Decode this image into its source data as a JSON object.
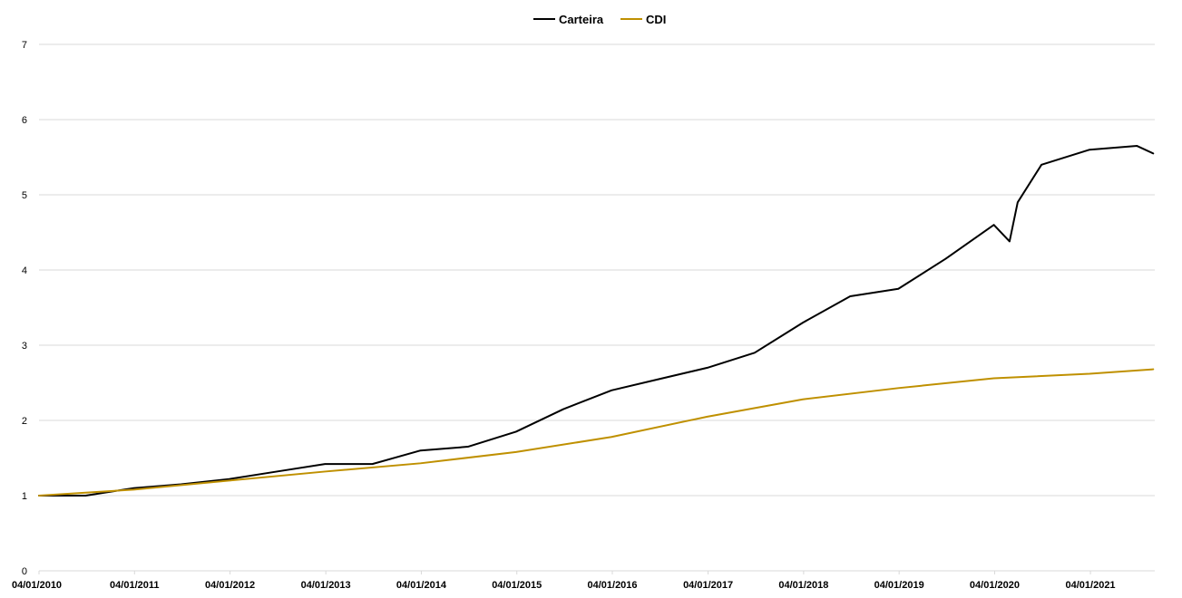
{
  "chart_data": {
    "type": "line",
    "title": "",
    "xlabel": "",
    "ylabel": "",
    "ylim": [
      0,
      7
    ],
    "y_ticks": [
      "0",
      "1",
      "2",
      "3",
      "4",
      "5",
      "6",
      "7"
    ],
    "x_ticks": [
      "04/01/2010",
      "04/01/2011",
      "04/01/2012",
      "04/01/2013",
      "04/01/2014",
      "04/01/2015",
      "04/01/2016",
      "04/01/2017",
      "04/01/2018",
      "04/01/2019",
      "04/01/2020",
      "04/01/2021"
    ],
    "x_range": [
      "04/01/2010",
      "07/09/2021"
    ],
    "grid": "horizontal",
    "legend_position": "top-center",
    "series": [
      {
        "name": "Carteira",
        "color": "#000000",
        "x": [
          "04/01/2010",
          "07/2010",
          "01/2011",
          "07/2011",
          "01/2012",
          "07/2012",
          "01/2013",
          "07/2013",
          "01/2014",
          "07/2014",
          "01/2015",
          "07/2015",
          "01/2016",
          "07/2016",
          "01/2017",
          "07/2017",
          "01/2018",
          "07/2018",
          "01/2019",
          "07/2019",
          "01/2020",
          "03/2020",
          "04/2020",
          "07/2020",
          "01/2021",
          "07/2021",
          "09/2021"
        ],
        "values": [
          1.0,
          1.0,
          1.1,
          1.15,
          1.22,
          1.32,
          1.42,
          1.42,
          1.6,
          1.65,
          1.85,
          2.15,
          2.4,
          2.55,
          2.7,
          2.9,
          3.3,
          3.65,
          3.75,
          4.15,
          4.6,
          4.38,
          4.9,
          5.4,
          5.6,
          5.65,
          5.55
        ]
      },
      {
        "name": "CDI",
        "color": "#bf9000",
        "x": [
          "04/01/2010",
          "01/2011",
          "01/2012",
          "01/2013",
          "01/2014",
          "01/2015",
          "01/2016",
          "01/2017",
          "01/2018",
          "01/2019",
          "01/2020",
          "01/2021",
          "09/2021"
        ],
        "values": [
          1.0,
          1.08,
          1.2,
          1.32,
          1.43,
          1.58,
          1.78,
          2.05,
          2.28,
          2.43,
          2.56,
          2.62,
          2.68
        ]
      }
    ]
  }
}
